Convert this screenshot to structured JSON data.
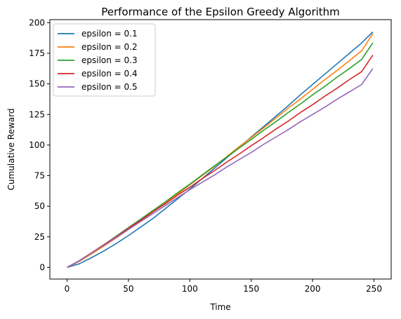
{
  "chart_data": {
    "type": "line",
    "title": "Performance of the Epsilon Greedy Algorithm",
    "xlabel": "Time",
    "ylabel": "Cumulative Reward",
    "xlim": [
      -14,
      264
    ],
    "ylim": [
      -9.5,
      202.5
    ],
    "xticks": [
      0,
      50,
      100,
      150,
      200,
      250
    ],
    "yticks": [
      0,
      25,
      50,
      75,
      100,
      125,
      150,
      175,
      200
    ],
    "grid": false,
    "legend_position": "top-left",
    "series": [
      {
        "name": "epsilon = 0.1",
        "color": "#1f77b4",
        "x": [
          0,
          10,
          20,
          30,
          40,
          50,
          60,
          70,
          80,
          90,
          100,
          110,
          120,
          130,
          140,
          150,
          160,
          170,
          180,
          190,
          200,
          210,
          220,
          230,
          240,
          249
        ],
        "y": [
          0,
          3,
          8,
          13.5,
          19.5,
          26,
          33,
          40,
          48,
          56,
          64,
          72.5,
          81,
          89.5,
          98,
          106.5,
          115,
          123.5,
          132,
          141,
          149.5,
          158,
          166.5,
          175,
          183.5,
          192.5
        ]
      },
      {
        "name": "epsilon = 0.2",
        "color": "#ff7f0e",
        "x": [
          0,
          10,
          20,
          30,
          40,
          50,
          60,
          70,
          80,
          90,
          100,
          110,
          120,
          130,
          140,
          150,
          160,
          170,
          180,
          190,
          200,
          210,
          220,
          230,
          240,
          249
        ],
        "y": [
          0,
          5,
          11,
          17.5,
          24,
          31,
          38,
          45.5,
          52.5,
          60,
          67.5,
          75,
          82.5,
          90.5,
          98.5,
          106,
          114,
          122,
          130,
          137.5,
          145.5,
          153.5,
          161,
          169,
          177,
          191
        ]
      },
      {
        "name": "epsilon = 0.3",
        "color": "#2ca02c",
        "x": [
          0,
          10,
          20,
          30,
          40,
          50,
          60,
          70,
          80,
          90,
          100,
          110,
          120,
          130,
          140,
          150,
          160,
          170,
          180,
          190,
          200,
          210,
          220,
          230,
          240,
          249
        ],
        "y": [
          0,
          5.5,
          12,
          18.5,
          25.5,
          32.5,
          39.5,
          46.5,
          53.5,
          61,
          68,
          75.5,
          83,
          90,
          97.5,
          104.5,
          112,
          119,
          126.5,
          133.5,
          141,
          148,
          155.5,
          162.5,
          170,
          183.5
        ]
      },
      {
        "name": "epsilon = 0.4",
        "color": "#d62728",
        "x": [
          0,
          10,
          20,
          30,
          40,
          50,
          60,
          70,
          80,
          90,
          100,
          110,
          120,
          130,
          140,
          150,
          160,
          170,
          180,
          190,
          200,
          210,
          220,
          230,
          240,
          249
        ],
        "y": [
          0,
          5.5,
          12,
          18.5,
          25,
          32,
          38.5,
          45.5,
          52,
          59,
          65.5,
          72.5,
          79,
          86,
          92.5,
          99.5,
          106,
          113,
          119.5,
          126.5,
          133,
          140,
          146.5,
          153.5,
          160,
          173.5
        ]
      },
      {
        "name": "epsilon = 0.5",
        "color": "#9467bd",
        "x": [
          0,
          10,
          20,
          30,
          40,
          50,
          60,
          70,
          80,
          90,
          100,
          110,
          120,
          130,
          140,
          150,
          160,
          170,
          180,
          190,
          200,
          210,
          220,
          230,
          240,
          249
        ],
        "y": [
          0,
          5.5,
          12,
          18,
          24.5,
          31,
          37.5,
          44,
          50.5,
          57,
          63.5,
          69.5,
          75.5,
          82,
          88,
          94,
          100.5,
          106.5,
          112.5,
          119,
          125,
          131,
          137.5,
          143.5,
          149.5,
          162.5
        ]
      }
    ]
  }
}
